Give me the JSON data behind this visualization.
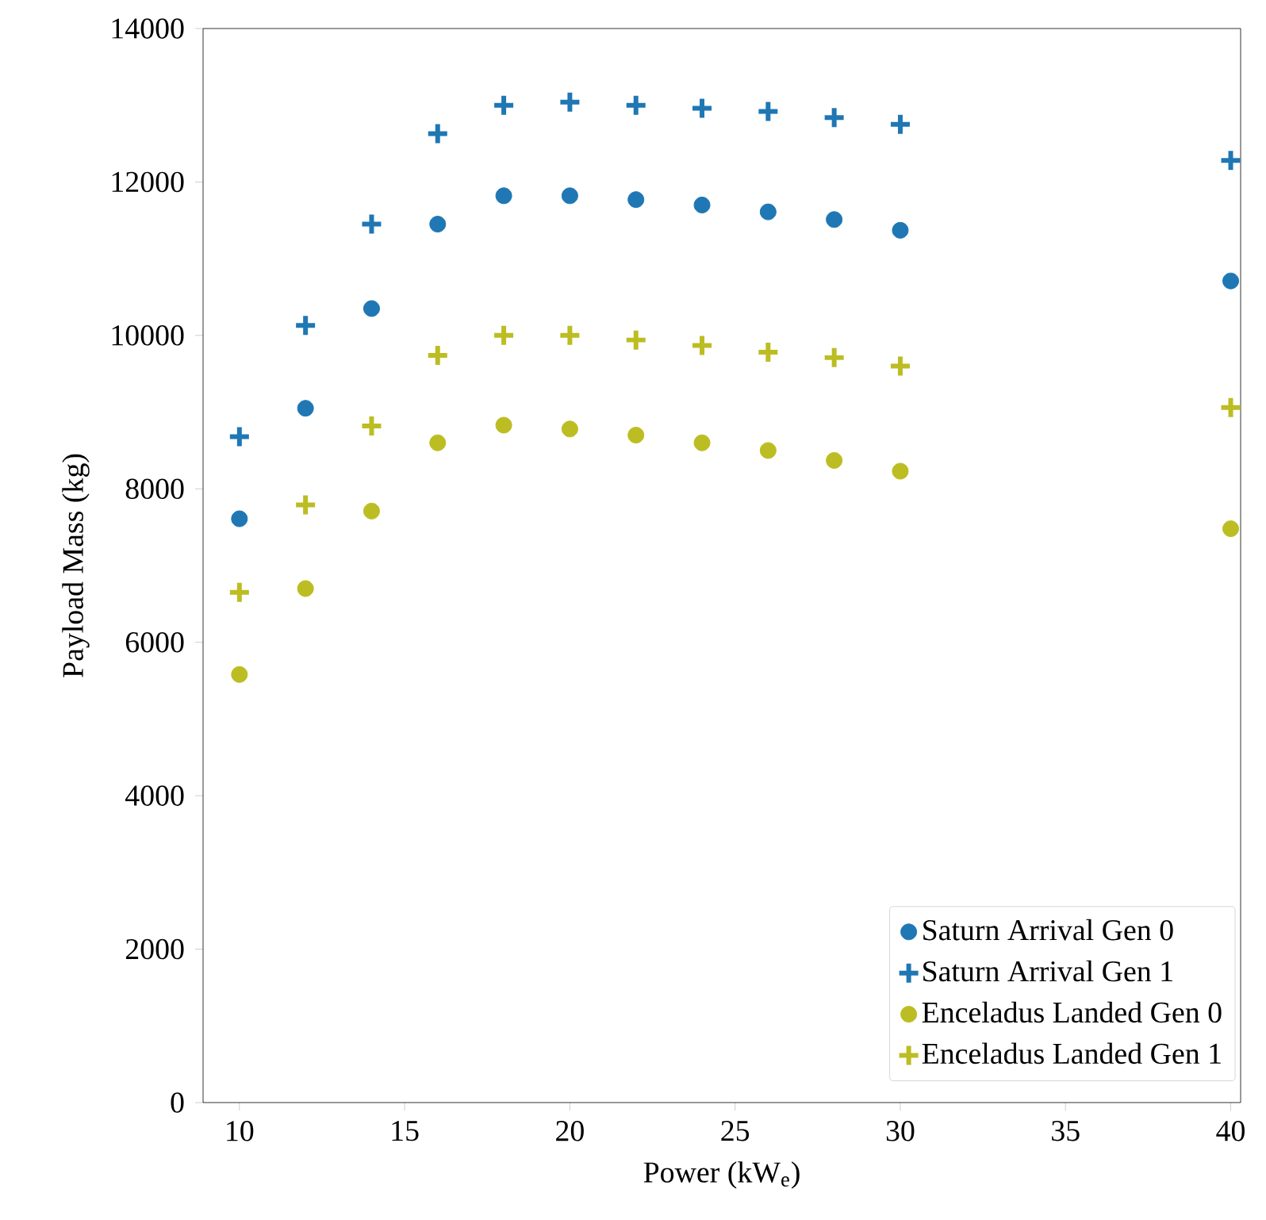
{
  "chart_data": {
    "type": "scatter",
    "xlabel": "Power (kW$_{e}$)",
    "ylabel": "Payload Mass (kg)",
    "xlim": [
      8.9,
      40.3
    ],
    "ylim": [
      0,
      14000
    ],
    "xticks": [
      10,
      15,
      20,
      25,
      30,
      35,
      40
    ],
    "yticks": [
      0,
      2000,
      4000,
      6000,
      8000,
      10000,
      12000,
      14000
    ],
    "x": [
      10,
      12,
      14,
      16,
      18,
      20,
      22,
      24,
      26,
      28,
      30,
      40
    ],
    "legend": "bottom right",
    "grid": false,
    "series": [
      {
        "name": "Saturn Arrival Gen 0",
        "color": "#1f77b4",
        "marker": "circle",
        "values": [
          7610,
          9050,
          10350,
          11450,
          11820,
          11820,
          11770,
          11700,
          11610,
          11510,
          11370,
          10710
        ]
      },
      {
        "name": "Saturn Arrival Gen 1",
        "color": "#1f77b4",
        "marker": "cross",
        "values": [
          8680,
          10130,
          11450,
          12630,
          13000,
          13040,
          13000,
          12960,
          12920,
          12840,
          12750,
          12280
        ]
      },
      {
        "name": "Enceladus Landed Gen 0",
        "color": "#bcbd22",
        "marker": "circle",
        "values": [
          5580,
          6700,
          7710,
          8600,
          8830,
          8780,
          8700,
          8600,
          8500,
          8370,
          8230,
          7480
        ]
      },
      {
        "name": "Enceladus Landed Gen 1",
        "color": "#bcbd22",
        "marker": "cross",
        "values": [
          6650,
          7790,
          8820,
          9740,
          10000,
          10000,
          9940,
          9870,
          9780,
          9710,
          9600,
          9060
        ]
      }
    ]
  }
}
